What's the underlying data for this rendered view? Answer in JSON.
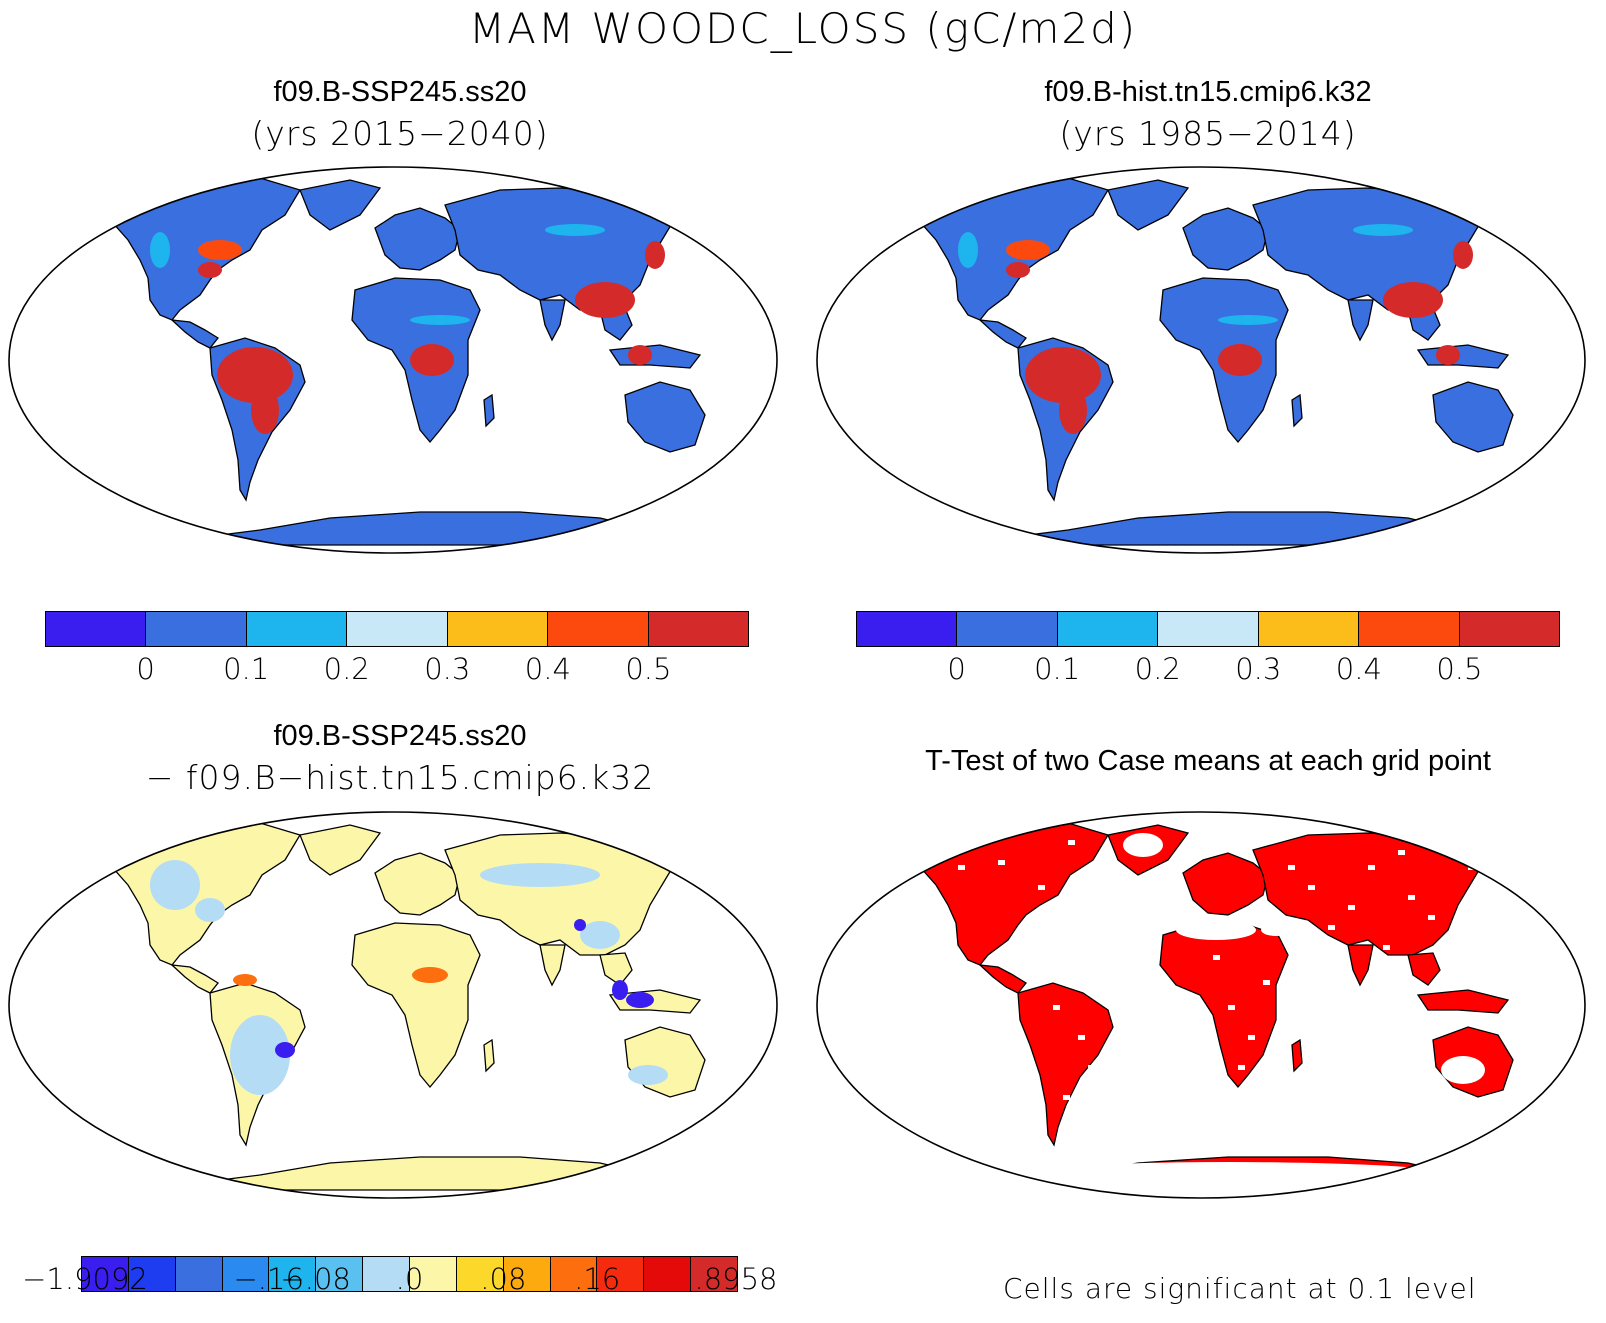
{
  "figure": {
    "title": "MAM WOODC_LOSS (gC/m2d)"
  },
  "panels": [
    {
      "id": "case1",
      "title": "f09.B-SSP245.ss20",
      "subtitle": "(yrs 2015−2040)"
    },
    {
      "id": "case2",
      "title": "f09.B-hist.tn15.cmip6.k32",
      "subtitle": "(yrs 1985−2014)"
    },
    {
      "id": "diff",
      "title": "f09.B-SSP245.ss20",
      "subtitle": "− f09.B−hist.tn15.cmip6.k32"
    },
    {
      "id": "ttest",
      "title": "T-Test of two Case means at each grid point",
      "note": "Cells are significant at 0.1 level"
    }
  ],
  "colorbars": {
    "abs": {
      "colors": [
        "#3a1ef0",
        "#3a6fe0",
        "#1eb4ee",
        "#c8e8f8",
        "#fcbc1a",
        "#fc4a0e",
        "#d42a2a"
      ],
      "labels": [
        "0",
        "0.1",
        "0.2",
        "0.3",
        "0.4",
        "0.5"
      ]
    },
    "diff": {
      "colors": [
        "#3a1ef0",
        "#1e3cf0",
        "#3a6fe0",
        "#2a8af0",
        "#1eb4ee",
        "#5ac0f0",
        "#b4dcf4",
        "#fcf7a8",
        "#fcd82a",
        "#fcaa0e",
        "#fc6e0e",
        "#f52a0e",
        "#e40a0a",
        "#d42a2a"
      ],
      "labels": [
        "−1.9092",
        "−.16",
        "−.08",
        ".0",
        ".08",
        ".16",
        ".8958"
      ]
    }
  },
  "map_colors": {
    "abs_land": "#3a6fe0",
    "abs_high": "#d42a2a",
    "abs_mid": "#fc4a0e",
    "abs_light": "#1eb4ee",
    "diff_land": "#fcf7a8",
    "diff_neg": "#b4dcf4",
    "diff_strong_neg": "#3a1ef0",
    "diff_pos": "#fc6e0e",
    "ttest_sig": "#ff0000",
    "ttest_nonsig": "#ffffff"
  }
}
